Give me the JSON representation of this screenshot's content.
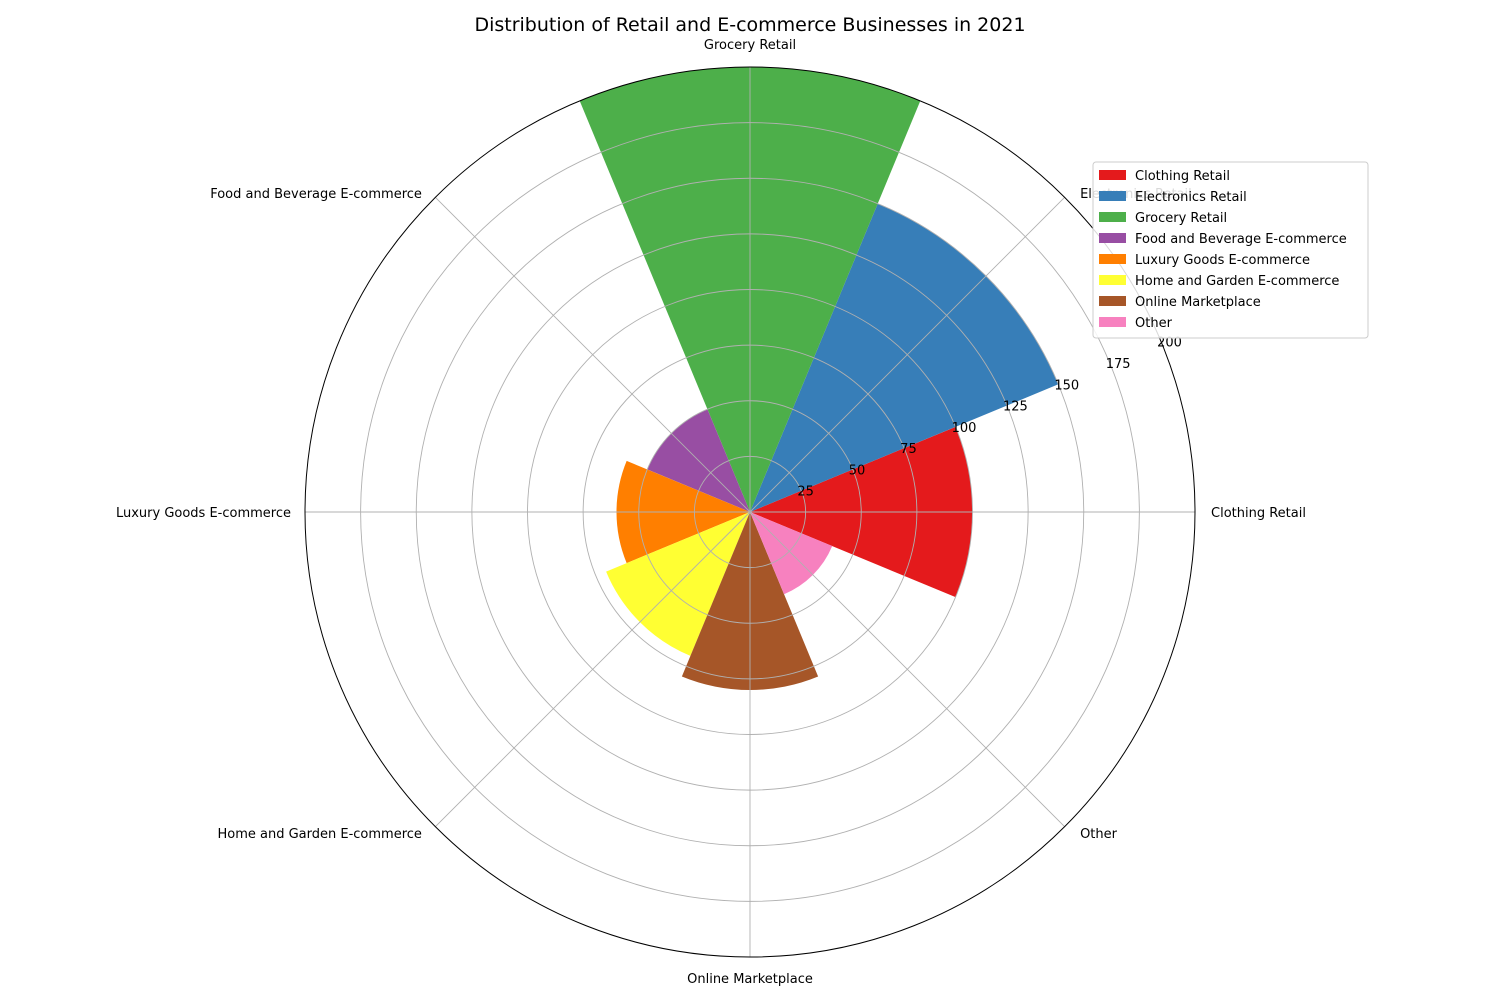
{
  "chart_data": {
    "type": "polar-bar",
    "title": "Distribution of Retail and E-commerce Businesses in 2021",
    "categories": [
      "Clothing Retail",
      "Electronics Retail",
      "Grocery Retail",
      "Food and Beverage E-commerce",
      "Luxury Goods E-commerce",
      "Home and Garden E-commerce",
      "Online Marketplace",
      "Other"
    ],
    "values": [
      100,
      150,
      200,
      50,
      60,
      70,
      80,
      40
    ],
    "colors": [
      "#e41a1c",
      "#377eb8",
      "#4daf4a",
      "#984ea3",
      "#ff7f00",
      "#ffff33",
      "#a65628",
      "#f781bf"
    ],
    "rlim": [
      0,
      200
    ],
    "radial_ticks": [
      25,
      50,
      75,
      100,
      125,
      150,
      175,
      200
    ],
    "grid": true,
    "legend_position": "top-right"
  }
}
